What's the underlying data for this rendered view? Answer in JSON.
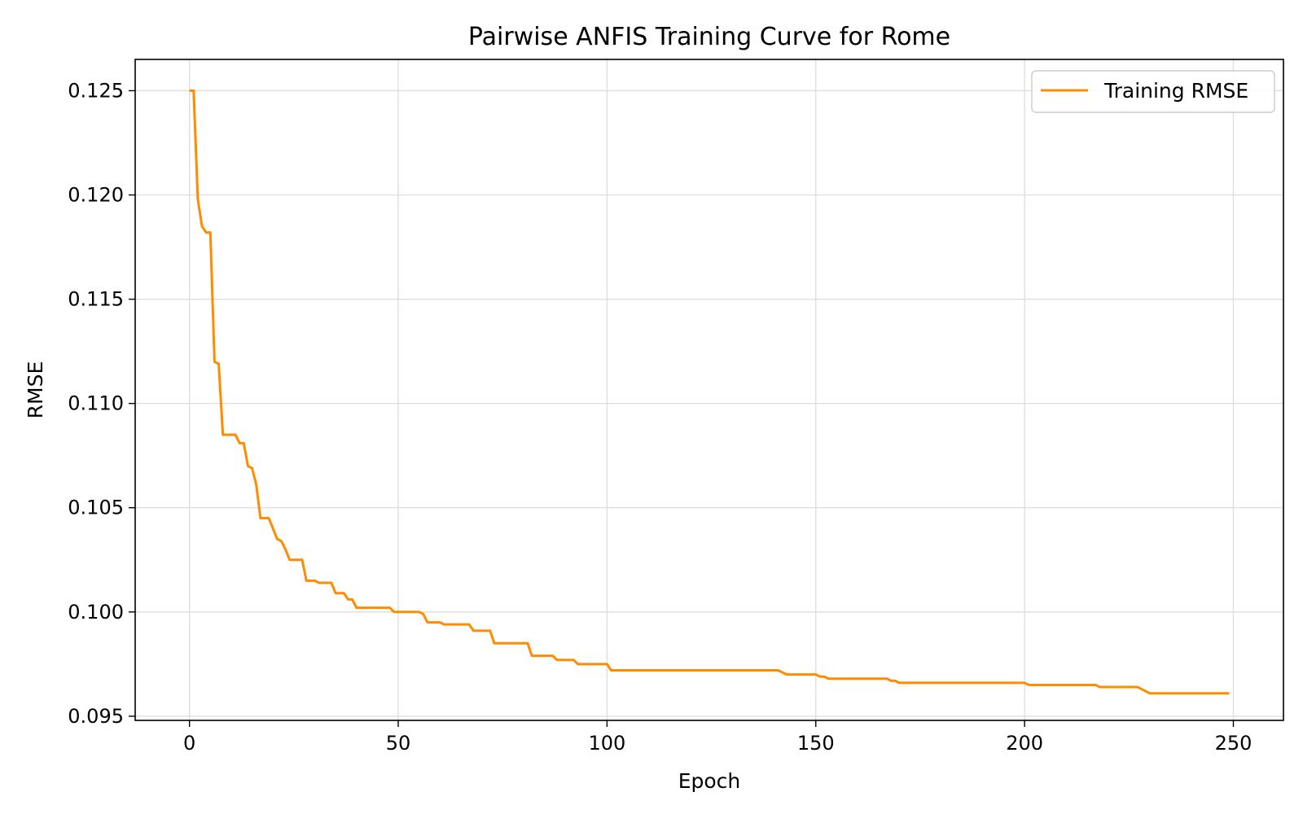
{
  "chart_data": {
    "type": "line",
    "title": "Pairwise ANFIS Training Curve for Rome",
    "xlabel": "Epoch",
    "ylabel": "RMSE",
    "xlim": [
      -13,
      262
    ],
    "ylim": [
      0.0948,
      0.1265
    ],
    "grid": true,
    "legend_position": "top-right",
    "xticks": [
      {
        "value": 0,
        "label": "0"
      },
      {
        "value": 50,
        "label": "50"
      },
      {
        "value": 100,
        "label": "100"
      },
      {
        "value": 150,
        "label": "150"
      },
      {
        "value": 200,
        "label": "200"
      },
      {
        "value": 250,
        "label": "250"
      }
    ],
    "yticks": [
      {
        "value": 0.095,
        "label": "0.095"
      },
      {
        "value": 0.1,
        "label": "0.100"
      },
      {
        "value": 0.105,
        "label": "0.105"
      },
      {
        "value": 0.11,
        "label": "0.110"
      },
      {
        "value": 0.115,
        "label": "0.115"
      },
      {
        "value": 0.12,
        "label": "0.120"
      },
      {
        "value": 0.125,
        "label": "0.125"
      }
    ],
    "series": [
      {
        "name": "Training RMSE",
        "color": "#ff8c00",
        "points": [
          [
            0,
            0.125
          ],
          [
            1,
            0.125
          ],
          [
            2,
            0.1198
          ],
          [
            3,
            0.1185
          ],
          [
            4,
            0.1182
          ],
          [
            5,
            0.1182
          ],
          [
            6,
            0.112
          ],
          [
            7,
            0.1119
          ],
          [
            8,
            0.1085
          ],
          [
            9,
            0.1085
          ],
          [
            11,
            0.1085
          ],
          [
            12,
            0.1081
          ],
          [
            13,
            0.1081
          ],
          [
            14,
            0.107
          ],
          [
            15,
            0.1069
          ],
          [
            16,
            0.1061
          ],
          [
            17,
            0.1045
          ],
          [
            19,
            0.1045
          ],
          [
            20,
            0.104
          ],
          [
            21,
            0.1035
          ],
          [
            22,
            0.1034
          ],
          [
            23,
            0.103
          ],
          [
            24,
            0.1025
          ],
          [
            27,
            0.1025
          ],
          [
            28,
            0.1015
          ],
          [
            30,
            0.1015
          ],
          [
            31,
            0.1014
          ],
          [
            34,
            0.1014
          ],
          [
            35,
            0.1009
          ],
          [
            37,
            0.1009
          ],
          [
            38,
            0.1006
          ],
          [
            39,
            0.1006
          ],
          [
            40,
            0.1002
          ],
          [
            48,
            0.1002
          ],
          [
            49,
            0.1
          ],
          [
            55,
            0.1
          ],
          [
            56,
            0.0999
          ],
          [
            57,
            0.0995
          ],
          [
            60,
            0.0995
          ],
          [
            61,
            0.0994
          ],
          [
            67,
            0.0994
          ],
          [
            68,
            0.0991
          ],
          [
            72,
            0.0991
          ],
          [
            73,
            0.0985
          ],
          [
            81,
            0.0985
          ],
          [
            82,
            0.0979
          ],
          [
            87,
            0.0979
          ],
          [
            88,
            0.0977
          ],
          [
            92,
            0.0977
          ],
          [
            93,
            0.0975
          ],
          [
            100,
            0.0975
          ],
          [
            101,
            0.0972
          ],
          [
            141,
            0.0972
          ],
          [
            143,
            0.097
          ],
          [
            150,
            0.097
          ],
          [
            151,
            0.0969
          ],
          [
            152,
            0.0969
          ],
          [
            153,
            0.0968
          ],
          [
            167,
            0.0968
          ],
          [
            168,
            0.0967
          ],
          [
            169,
            0.0967
          ],
          [
            170,
            0.0966
          ],
          [
            200,
            0.0966
          ],
          [
            201,
            0.0965
          ],
          [
            202,
            0.0965
          ],
          [
            217,
            0.0965
          ],
          [
            218,
            0.0964
          ],
          [
            225,
            0.0964
          ],
          [
            227,
            0.0964
          ],
          [
            228,
            0.0963
          ],
          [
            229,
            0.0962
          ],
          [
            230,
            0.0961
          ],
          [
            249,
            0.0961
          ]
        ]
      }
    ]
  }
}
